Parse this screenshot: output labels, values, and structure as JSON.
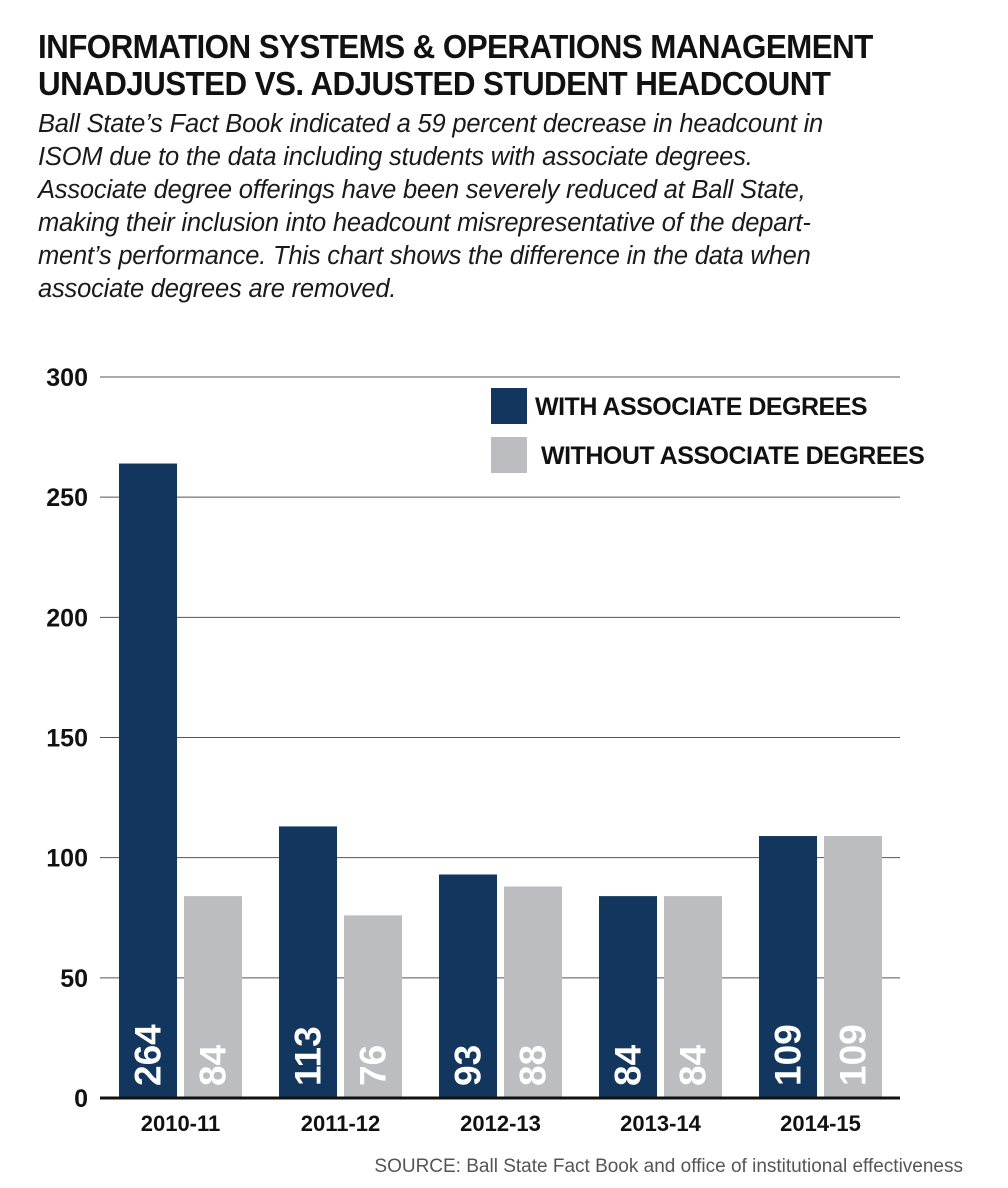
{
  "header": {
    "title_lines": [
      "INFORMATION SYSTEMS & OPERATIONS MANAGEMENT",
      "UNADJUSTED VS. ADJUSTED STUDENT HEADCOUNT"
    ],
    "subtitle_lines": [
      "Ball State’s Fact Book indicated a 59 percent decrease in headcount in",
      "ISOM due to the data including students with associate degrees.",
      "Associate degree offerings have been severely reduced at Ball State,",
      "making their inclusion into headcount misrepresentative of the depart-",
      "ment’s performance. This chart shows the difference in the data when",
      "associate degrees are removed."
    ]
  },
  "chart_data": {
    "type": "bar",
    "categories": [
      "2010-11",
      "2011-12",
      "2012-13",
      "2013-14",
      "2014-15"
    ],
    "series": [
      {
        "name": "WITH ASSOCIATE DEGREES",
        "color": "#12365e",
        "values": [
          264,
          113,
          93,
          84,
          109
        ],
        "labels": [
          "264",
          "113",
          "93",
          "84",
          "109"
        ]
      },
      {
        "name": "WITHOUT ASSOCIATE DEGREES",
        "color": "#bcbdc0",
        "values": [
          84,
          76,
          88,
          84,
          109
        ],
        "labels": [
          "84",
          "76",
          "88",
          "84",
          "109"
        ]
      }
    ],
    "ylim": [
      0,
      300
    ],
    "yticks": [
      0,
      50,
      100,
      150,
      200,
      250,
      300
    ],
    "ytick_labels": [
      "0",
      "50",
      "100",
      "150",
      "200",
      "250",
      "300"
    ],
    "grid": true,
    "legend_position": "top-right",
    "xlabel": "",
    "ylabel": ""
  },
  "footer": {
    "source": "SOURCE: Ball State Fact Book and office of institutional effectiveness"
  }
}
